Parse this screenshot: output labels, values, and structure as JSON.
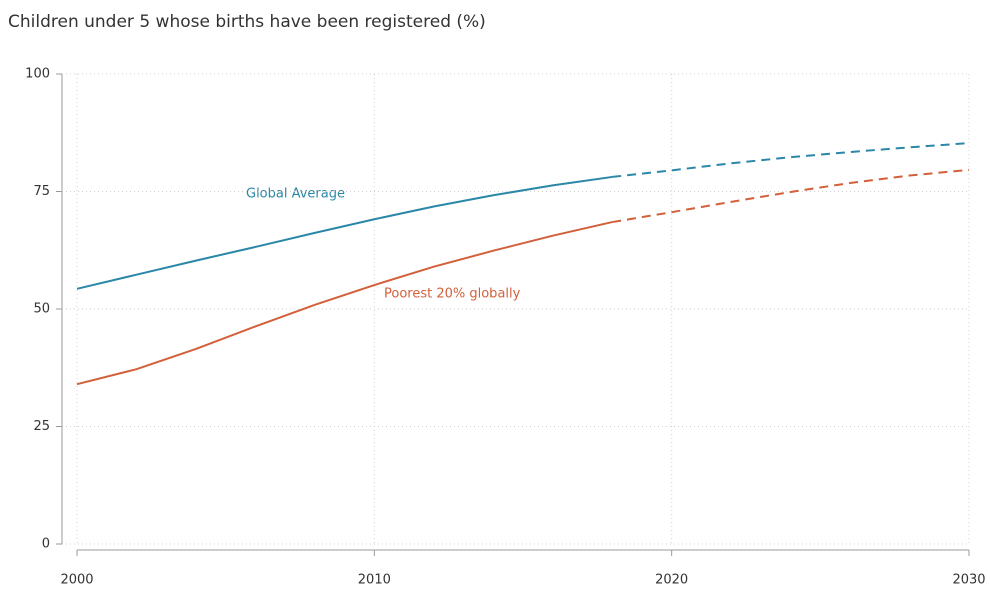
{
  "chart_data": {
    "type": "line",
    "title": "Children under 5 whose births have been registered (%)",
    "x": [
      2000,
      2002,
      2004,
      2006,
      2008,
      2010,
      2012,
      2014,
      2016,
      2018,
      2020,
      2022,
      2024,
      2026,
      2028,
      2030
    ],
    "series": [
      {
        "name": "Global Average",
        "color": "#2a87a8",
        "values": [
          54.3,
          57.3,
          60.3,
          63.2,
          66.2,
          69.1,
          71.8,
          74.2,
          76.3,
          78.1,
          79.5,
          81.0,
          82.3,
          83.4,
          84.4,
          85.3
        ]
      },
      {
        "name": "Poorest 20% globally",
        "color": "#d2603b",
        "values": [
          34.0,
          37.2,
          41.5,
          46.3,
          50.9,
          55.1,
          59.0,
          62.4,
          65.6,
          68.5,
          70.6,
          72.8,
          74.9,
          76.8,
          78.4,
          79.6
        ]
      }
    ],
    "projection_from": 2018,
    "xlim": [
      2000,
      2030
    ],
    "xticks": [
      2000,
      2010,
      2020,
      2030
    ],
    "ylim": [
      0,
      100
    ],
    "yticks": [
      0,
      25,
      50,
      75,
      100
    ],
    "grid": true
  }
}
